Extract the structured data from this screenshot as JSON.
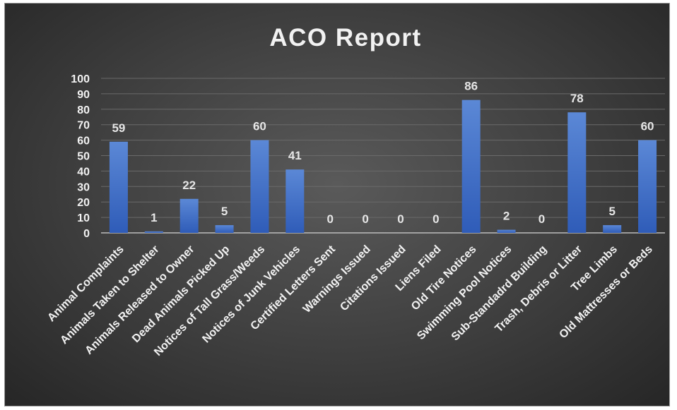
{
  "chart_data": {
    "type": "bar",
    "title": "ACO Report",
    "xlabel": "",
    "ylabel": "",
    "categories": [
      "Animal Complaints",
      "Animals Taken to Shelter",
      "Animals Released to Owner",
      "Dead Animals Picked Up",
      "Notices of Tall Grass/Weeds",
      "Notices of Junk Vehicles",
      "Certified Letters Sent",
      "Warnings Issued",
      "Citations Issued",
      "Liens Filed",
      "Old Tire Notices",
      "Swimming Pool Notices",
      "Sub-Standadrd Building",
      "Trash, Debris or Litter",
      "Tree Limbs",
      "Old Mattresses or Beds"
    ],
    "values": [
      59,
      1,
      22,
      5,
      60,
      41,
      0,
      0,
      0,
      0,
      86,
      2,
      0,
      78,
      5,
      60
    ],
    "ylim": [
      0,
      100
    ],
    "yticks": [
      0,
      10,
      20,
      30,
      40,
      50,
      60,
      70,
      80,
      90,
      100
    ],
    "grid": true,
    "legend": "none",
    "data_labels": true,
    "colors": {
      "bar_top": "#5b88d6",
      "bar_bottom": "#2f5cb8",
      "background": "#404040",
      "gridline": "#6a6a6a",
      "text": "#f2f2f2"
    }
  }
}
